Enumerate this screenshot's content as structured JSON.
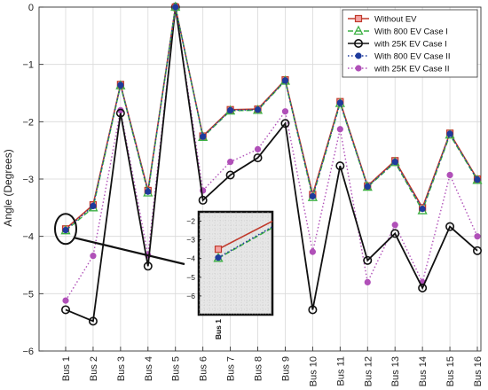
{
  "chart_data": {
    "type": "line",
    "title": "",
    "xlabel": "",
    "ylabel": "Angle (Degrees)",
    "categories": [
      "Bus 1",
      "Bus 2",
      "Bus 3",
      "Bus 4",
      "Bus 5",
      "Bus 6",
      "Bus 7",
      "Bus 8",
      "Bus 9",
      "Bus 10",
      "Bus 11",
      "Bus 12",
      "Bus 13",
      "Bus 14",
      "Bus 15",
      "Bus 16"
    ],
    "ylim": [
      -6,
      0
    ],
    "yticks": [
      0,
      -1,
      -2,
      -3,
      -4,
      -5,
      -6
    ],
    "grid": true,
    "legend_position": "top-right",
    "series": [
      {
        "name": "Without EV",
        "color": "#c0392b",
        "marker": "square",
        "line": "solid",
        "values": [
          -3.87,
          -3.45,
          -1.35,
          -3.2,
          0,
          -2.25,
          -1.79,
          -1.78,
          -1.27,
          -3.27,
          -1.65,
          -3.12,
          -2.68,
          -3.5,
          -2.2,
          -3.0
        ]
      },
      {
        "name": "With 800 EV Case I",
        "color": "#3cb043",
        "marker": "triangle",
        "line": "dashed",
        "values": [
          -3.9,
          -3.5,
          -1.37,
          -3.24,
          0,
          -2.27,
          -1.81,
          -1.8,
          -1.29,
          -3.32,
          -1.68,
          -3.14,
          -2.71,
          -3.55,
          -2.23,
          -3.02
        ]
      },
      {
        "name": "with 25K EV Case I",
        "color": "#111111",
        "marker": "circle",
        "line": "solid",
        "values": [
          -5.28,
          -5.48,
          -1.85,
          -4.52,
          0,
          -3.37,
          -2.93,
          -2.63,
          -2.03,
          -5.28,
          -2.77,
          -4.42,
          -3.95,
          -4.9,
          -3.83,
          -4.25
        ]
      },
      {
        "name": "With 800 EV Case II",
        "color": "#1f3b9c",
        "marker": "dot",
        "line": "dotted",
        "values": [
          -3.89,
          -3.47,
          -1.36,
          -3.22,
          0,
          -2.26,
          -1.8,
          -1.79,
          -1.28,
          -3.3,
          -1.67,
          -3.13,
          -2.7,
          -3.52,
          -2.21,
          -3.01
        ]
      },
      {
        "name": "with 25K EV Case II",
        "color": "#b050b8",
        "marker": "dot",
        "line": "dotted",
        "values": [
          -5.12,
          -4.34,
          -1.8,
          -4.33,
          0,
          -3.2,
          -2.7,
          -2.48,
          -1.82,
          -4.27,
          -2.13,
          -4.8,
          -3.8,
          -4.8,
          -2.93,
          -4.0
        ]
      }
    ],
    "inset": {
      "ylim": [
        -7,
        -1.5
      ],
      "yticks": [
        -2,
        -3,
        -4,
        -5,
        -6
      ],
      "category": "Bus 1",
      "series_values": [
        {
          "name": "Without EV",
          "start": -3.5,
          "end": -2.0
        },
        {
          "name": "With 800 EV Case I",
          "start": -3.98,
          "end": -2.35
        },
        {
          "name": "With 800 EV Case II",
          "start": -3.95,
          "end": -2.3
        }
      ]
    }
  }
}
